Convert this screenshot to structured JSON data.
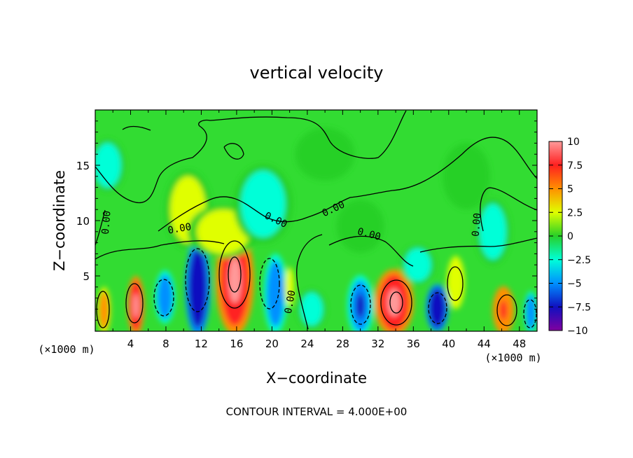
{
  "chart_data": {
    "type": "heatmap",
    "title": "vertical velocity",
    "xlabel": "X−coordinate",
    "ylabel": "Z−coordinate",
    "x_unit_left": "(×1000 m)",
    "x_unit_right": "(×1000 m)",
    "footer": "CONTOUR INTERVAL = 4.000E+00",
    "xlim": [
      0,
      50
    ],
    "ylim": [
      0,
      20
    ],
    "xticks": [
      4,
      8,
      12,
      16,
      20,
      24,
      28,
      32,
      36,
      40,
      44,
      48
    ],
    "xtick_labels": [
      "4",
      "8",
      "12",
      "16",
      "20",
      "24",
      "28",
      "32",
      "36",
      "40",
      "44",
      "48"
    ],
    "yticks": [
      5,
      10,
      15
    ],
    "ytick_labels": [
      "5",
      "10",
      "15"
    ],
    "colorbar": {
      "min": -10,
      "max": 10,
      "ticks": [
        10,
        7.5,
        5,
        2.5,
        0,
        -2.5,
        -5,
        -7.5,
        -10
      ],
      "tick_labels": [
        "10",
        "7.5",
        "5",
        "2.5",
        "0",
        "−2.5",
        "−5",
        "−7.5",
        "−10"
      ],
      "colors": [
        "#ff9a9a",
        "#ff2020",
        "#ff9000",
        "#e0ff00",
        "#28d028",
        "#00ffd8",
        "#0090ff",
        "#1010c0",
        "#8000a0"
      ]
    },
    "contour_labels": [
      {
        "text": "0.00",
        "x": 1.6,
        "z": 9.8,
        "angle": -85
      },
      {
        "text": "0.00",
        "x": 9.6,
        "z": 9.0,
        "angle": -10
      },
      {
        "text": "0.00",
        "x": 20.3,
        "z": 9.8,
        "angle": 25
      },
      {
        "text": "0.00",
        "x": 27.1,
        "z": 10.8,
        "angle": -25
      },
      {
        "text": "0.00",
        "x": 30.9,
        "z": 8.5,
        "angle": 15
      },
      {
        "text": "0.00",
        "x": 43.5,
        "z": 9.6,
        "angle": -85
      },
      {
        "text": "0.00",
        "x": 22.4,
        "z": 2.6,
        "angle": -80
      }
    ],
    "cells": [
      {
        "x": 1.0,
        "z": 1.9,
        "w": 1.1,
        "h": 3.5,
        "v": 6
      },
      {
        "x": 4.6,
        "z": 2.3,
        "w": 1.4,
        "h": 4.5,
        "v": 9.5
      },
      {
        "x": 7.9,
        "z": 3.1,
        "w": 1.7,
        "h": 4.0,
        "v": -5.5
      },
      {
        "x": 11.6,
        "z": 3.9,
        "w": 2.1,
        "h": 7.2,
        "v": -8.5
      },
      {
        "x": 15.8,
        "z": 4.6,
        "w": 3.2,
        "h": 8.2,
        "v": 10
      },
      {
        "x": 20.4,
        "z": 3.4,
        "w": 2.0,
        "h": 6.0,
        "v": -6
      },
      {
        "x": 22.0,
        "z": 4.0,
        "w": 0.8,
        "h": 3.0,
        "v": 4
      },
      {
        "x": 24.5,
        "z": 2.0,
        "w": 2.5,
        "h": 3.0,
        "v": -2.5
      },
      {
        "x": 30.0,
        "z": 2.3,
        "w": 2.2,
        "h": 4.6,
        "v": -7.5
      },
      {
        "x": 33.8,
        "z": 2.6,
        "w": 3.3,
        "h": 5.0,
        "v": 9.5
      },
      {
        "x": 38.7,
        "z": 2.1,
        "w": 1.9,
        "h": 3.6,
        "v": -8
      },
      {
        "x": 40.8,
        "z": 4.4,
        "w": 1.5,
        "h": 4.0,
        "v": 4.5
      },
      {
        "x": 46.2,
        "z": 1.9,
        "w": 1.8,
        "h": 3.6,
        "v": 7.5
      },
      {
        "x": 49.3,
        "z": 1.7,
        "w": 1.1,
        "h": 3.2,
        "v": -5
      },
      {
        "x": 1.4,
        "z": 15.0,
        "w": 3.0,
        "h": 4.0,
        "v": -2.5
      },
      {
        "x": 10.5,
        "z": 11.0,
        "w": 4.0,
        "h": 6.0,
        "v": 2.0
      },
      {
        "x": 14.5,
        "z": 9.0,
        "w": 6.0,
        "h": 4.0,
        "v": 2.0
      },
      {
        "x": 19.0,
        "z": 11.5,
        "w": 5.0,
        "h": 6.0,
        "v": -2.0
      },
      {
        "x": 26.0,
        "z": 16.0,
        "w": 5.0,
        "h": 4.0,
        "v": 1.5
      },
      {
        "x": 30.0,
        "z": 9.5,
        "w": 4.0,
        "h": 4.0,
        "v": -1.5
      },
      {
        "x": 36.5,
        "z": 6.0,
        "w": 3.0,
        "h": 3.0,
        "v": -2.0
      },
      {
        "x": 45.0,
        "z": 9.0,
        "w": 3.0,
        "h": 5.0,
        "v": -1.8
      },
      {
        "x": 42.0,
        "z": 14.0,
        "w": 4.0,
        "h": 5.0,
        "v": -1.5
      }
    ]
  }
}
